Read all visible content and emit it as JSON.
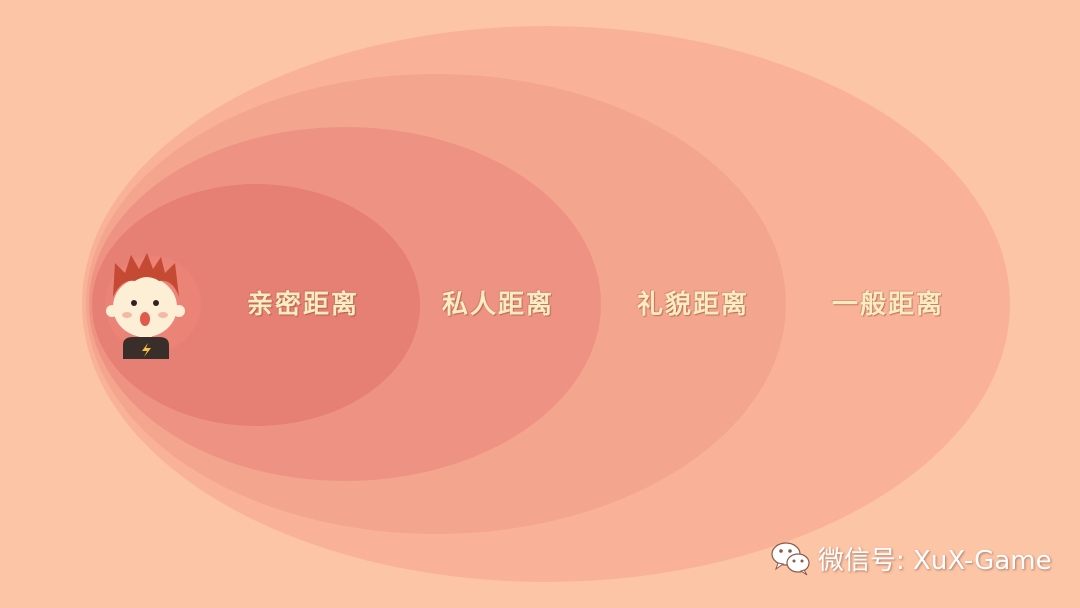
{
  "zones": [
    {
      "label": "亲密距离",
      "color": "#E67F74"
    },
    {
      "label": "私人距离",
      "color": "#EE9383"
    },
    {
      "label": "礼貌距离",
      "color": "#F4A58E"
    },
    {
      "label": "一般距离",
      "color": "#F9B298"
    }
  ],
  "background_color": "#FCC5A6",
  "label_color": "#FCECC4",
  "watermark": {
    "icon": "wechat-icon",
    "text": "微信号: XuX-Game"
  }
}
